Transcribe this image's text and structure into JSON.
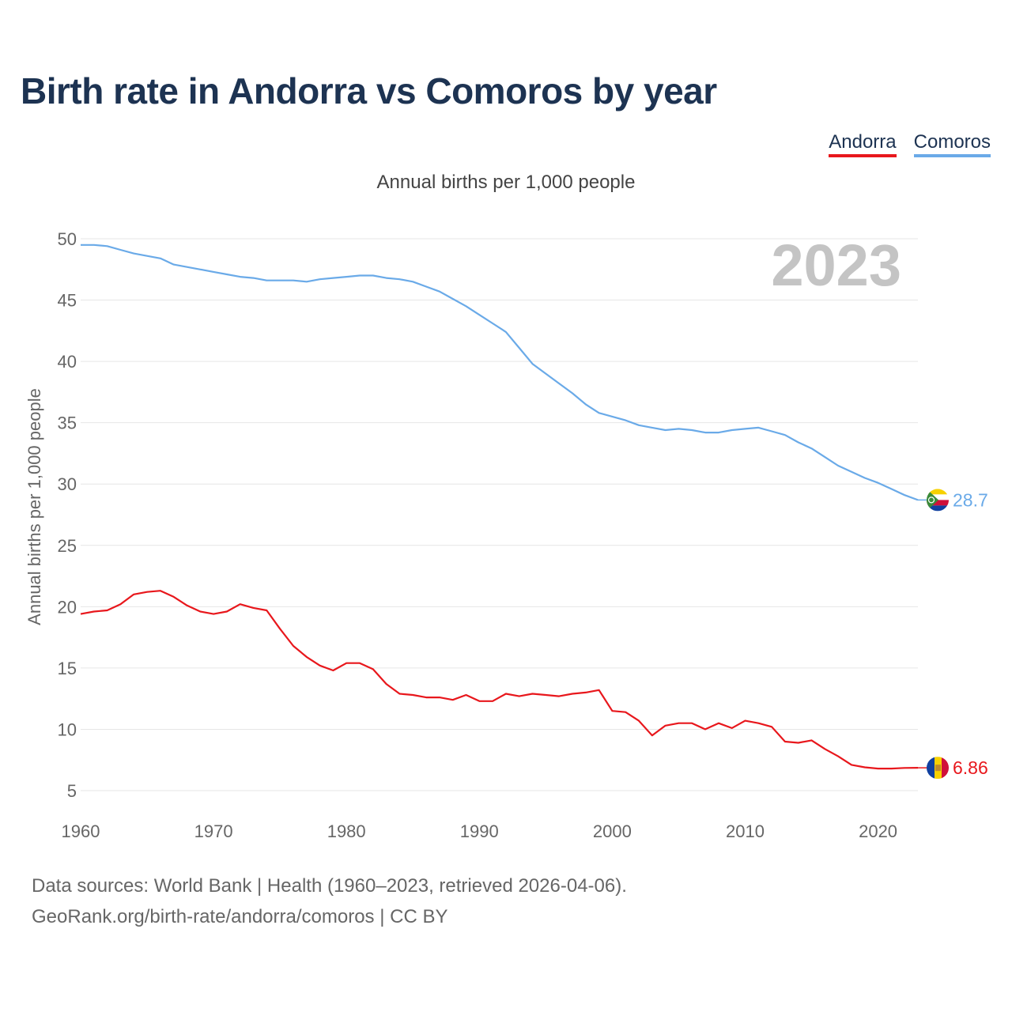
{
  "title": "Birth rate in Andorra vs Comoros by year",
  "subtitle": "Annual births per 1,000 people",
  "legend": {
    "andorra": "Andorra",
    "comoros": "Comoros"
  },
  "footer": {
    "line1": "Data sources: World Bank | Health (1960–2023, retrieved 2026-04-06).",
    "line2": "GeoRank.org/birth-rate/andorra/comoros | CC BY"
  },
  "colors": {
    "andorra": "#e8171c",
    "comoros": "#6aaae8",
    "grid": "#e6e6e6",
    "axis_text": "#666666",
    "year_label": "#c4c4c4"
  },
  "chart_data": {
    "type": "line",
    "title": "Birth rate in Andorra vs Comoros by year",
    "ylabel": "Annual births per 1,000 people",
    "xlabel": "",
    "xlim": [
      1960,
      2023
    ],
    "ylim": [
      5,
      50
    ],
    "x_ticks": [
      1960,
      1970,
      1980,
      1990,
      2000,
      2010,
      2020
    ],
    "y_ticks": [
      5,
      10,
      15,
      20,
      25,
      30,
      35,
      40,
      45,
      50
    ],
    "grid": true,
    "year_label": "2023",
    "x": [
      1960,
      1961,
      1962,
      1963,
      1964,
      1965,
      1966,
      1967,
      1968,
      1969,
      1970,
      1971,
      1972,
      1973,
      1974,
      1975,
      1976,
      1977,
      1978,
      1979,
      1980,
      1981,
      1982,
      1983,
      1984,
      1985,
      1986,
      1987,
      1988,
      1989,
      1990,
      1991,
      1992,
      1993,
      1994,
      1995,
      1996,
      1997,
      1998,
      1999,
      2000,
      2001,
      2002,
      2003,
      2004,
      2005,
      2006,
      2007,
      2008,
      2009,
      2010,
      2011,
      2012,
      2013,
      2014,
      2015,
      2016,
      2017,
      2018,
      2019,
      2020,
      2021,
      2022,
      2023
    ],
    "series": [
      {
        "name": "Comoros",
        "end_label": "28.7",
        "values": [
          49.5,
          49.5,
          49.4,
          49.1,
          48.8,
          48.6,
          48.4,
          47.9,
          47.7,
          47.5,
          47.3,
          47.1,
          46.9,
          46.8,
          46.6,
          46.6,
          46.6,
          46.5,
          46.7,
          46.8,
          46.9,
          47.0,
          47.0,
          46.8,
          46.7,
          46.5,
          46.1,
          45.7,
          45.1,
          44.5,
          43.8,
          43.1,
          42.4,
          41.1,
          39.8,
          39.0,
          38.2,
          37.4,
          36.5,
          35.8,
          35.5,
          35.2,
          34.8,
          34.6,
          34.4,
          34.5,
          34.4,
          34.2,
          34.2,
          34.4,
          34.5,
          34.6,
          34.3,
          34.0,
          33.4,
          32.9,
          32.2,
          31.5,
          31.0,
          30.5,
          30.1,
          29.6,
          29.1,
          28.7
        ]
      },
      {
        "name": "Andorra",
        "end_label": "6.86",
        "values": [
          19.4,
          19.6,
          19.7,
          20.2,
          21.0,
          21.2,
          21.3,
          20.8,
          20.1,
          19.6,
          19.4,
          19.6,
          20.2,
          19.9,
          19.7,
          18.2,
          16.8,
          15.9,
          15.2,
          14.8,
          15.4,
          15.4,
          14.9,
          13.7,
          12.9,
          12.8,
          12.6,
          12.6,
          12.4,
          12.8,
          12.3,
          12.3,
          12.9,
          12.7,
          12.9,
          12.8,
          12.7,
          12.9,
          13.0,
          13.2,
          11.5,
          11.4,
          10.7,
          9.5,
          10.3,
          10.5,
          10.5,
          10.0,
          10.5,
          10.1,
          10.7,
          10.5,
          10.2,
          9.0,
          8.9,
          9.1,
          8.4,
          7.8,
          7.1,
          6.9,
          6.8,
          6.8,
          6.85,
          6.86
        ]
      }
    ]
  }
}
